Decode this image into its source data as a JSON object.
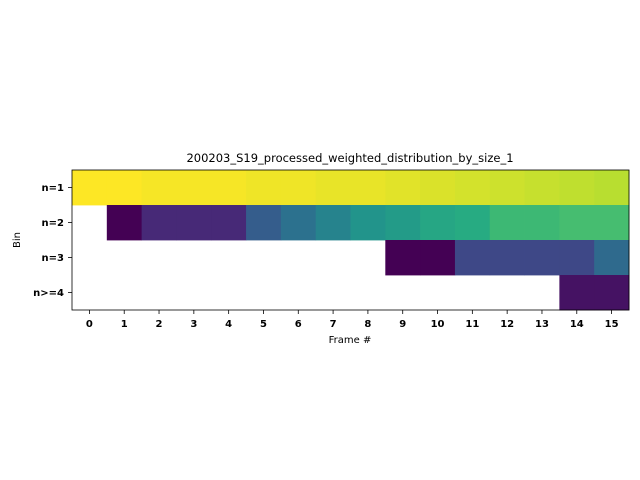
{
  "chart_data": {
    "type": "heatmap",
    "title": "200203_S19_processed_weighted_distribution_by_size_1",
    "xlabel": "Frame #",
    "ylabel": "Bin",
    "x_categories": [
      "0",
      "1",
      "2",
      "3",
      "4",
      "5",
      "6",
      "7",
      "8",
      "9",
      "10",
      "11",
      "12",
      "13",
      "14",
      "15"
    ],
    "y_categories": [
      "n=1",
      "n=2",
      "n=3",
      "n>=4"
    ],
    "colormap": "viridis",
    "grid": false,
    "colorbar": false,
    "values": [
      [
        1.0,
        1.0,
        0.99,
        0.99,
        0.99,
        0.98,
        0.98,
        0.97,
        0.97,
        0.96,
        0.95,
        0.94,
        0.93,
        0.92,
        0.91,
        0.9
      ],
      [
        null,
        0.0,
        0.12,
        0.12,
        0.12,
        0.3,
        0.38,
        0.45,
        0.52,
        0.55,
        0.6,
        0.62,
        0.68,
        0.68,
        0.7,
        0.7
      ],
      [
        null,
        null,
        null,
        null,
        null,
        null,
        null,
        null,
        null,
        0.0,
        0.0,
        0.22,
        0.22,
        0.22,
        0.22,
        0.35
      ],
      [
        null,
        null,
        null,
        null,
        null,
        null,
        null,
        null,
        null,
        null,
        null,
        null,
        null,
        null,
        0.05,
        0.05
      ]
    ]
  }
}
